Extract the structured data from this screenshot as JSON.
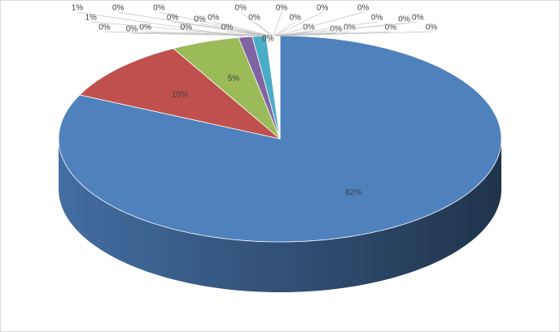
{
  "chart_data": {
    "type": "pie3d",
    "values": [
      82,
      10,
      5,
      1,
      1,
      0.04,
      0.04,
      0.04,
      0.04,
      0.04,
      0.04,
      0.04,
      0.04,
      0.04,
      0.04,
      0.04,
      0.04,
      0.04,
      0.04,
      0.04,
      0.04,
      0.04,
      0.04,
      0.04,
      0.04,
      0.04,
      0.04,
      0.04,
      0.04,
      0.04
    ],
    "value_labels": [
      "82%",
      "10%",
      "5%",
      "1%",
      "1%",
      "0%",
      "0%",
      "0%",
      "0%",
      "0%",
      "0%",
      "0%",
      "0%",
      "0%",
      "0%",
      "0%",
      "0%",
      "0%",
      "0%",
      "0%",
      "0%",
      "0%",
      "0%",
      "0%",
      "0%",
      "0%",
      "0%",
      "0%",
      "0%",
      "0%"
    ],
    "colors": [
      "#4f81bd",
      "#c0504d",
      "#9bbb59",
      "#8064a2",
      "#4bacc6",
      "#f79646",
      "#2c4d75",
      "#772c2a",
      "#5f7530",
      "#4d3b62",
      "#276a7c",
      "#b65708",
      "#729aca",
      "#cd7371",
      "#afc97a",
      "#9983b5",
      "#6fbdd1",
      "#f9ab6b",
      "#3a679c",
      "#9f3b38",
      "#7f9c40",
      "#664f83",
      "#358ea6",
      "#d3700b",
      "#95b3d7",
      "#d99694",
      "#c3d69b",
      "#b3a2c7",
      "#93cddd",
      "#fac090"
    ]
  }
}
